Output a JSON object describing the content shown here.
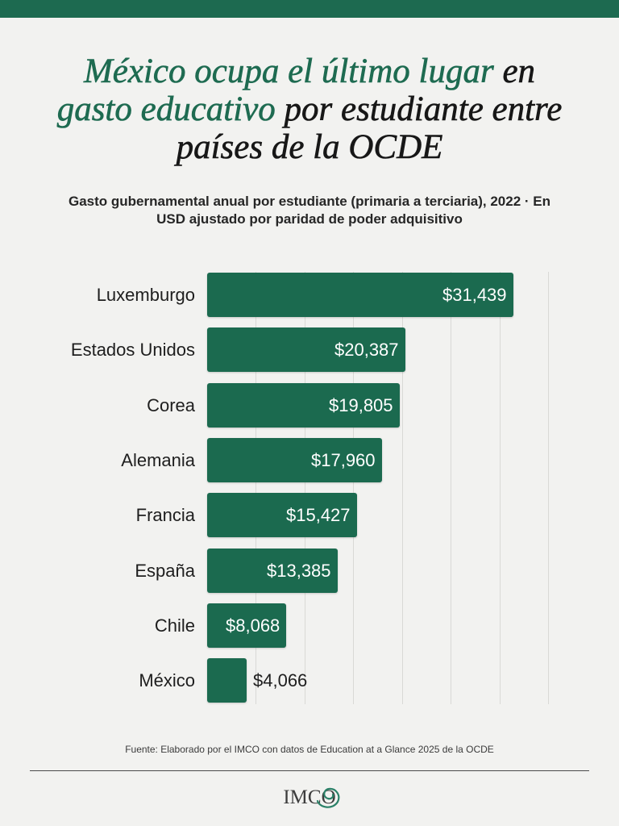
{
  "colors": {
    "brand_green": "#1e6b51",
    "bar": "#1b6a4f",
    "title_dark": "#171717",
    "background": "#f2f2f0",
    "gridline": "#d9d9d6",
    "value_label_inside": "#ffffff",
    "value_label_outside": "#1e1e1e"
  },
  "chart_data": {
    "type": "bar",
    "orientation": "horizontal",
    "title_lines": [
      [
        {
          "text": "México ocupa el último lugar",
          "color": "#1e6b51"
        },
        {
          "text": " en",
          "color": "#171717"
        }
      ],
      [
        {
          "text": "gasto educativo",
          "color": "#1e6b51"
        },
        {
          "text": " por estudiante entre",
          "color": "#171717"
        }
      ],
      [
        {
          "text": "países de la OCDE",
          "color": "#171717"
        }
      ]
    ],
    "subtitle": "Gasto gubernamental anual por estudiante (primaria a terciaria), 2022 · En USD ajustado por paridad de poder adquisitivo",
    "categories": [
      "Luxemburgo",
      "Estados Unidos",
      "Corea",
      "Alemania",
      "Francia",
      "España",
      "Chile",
      "México"
    ],
    "values": [
      31439,
      20387,
      19805,
      17960,
      15427,
      13385,
      8068,
      4066
    ],
    "value_labels": [
      "$31,439",
      "$20,387",
      "$19,805",
      "$17,960",
      "$15,427",
      "$13,385",
      "$8,068",
      "$4,066"
    ],
    "xlim": [
      0,
      35000
    ],
    "grid": true,
    "grid_step": 5000
  },
  "source": "Fuente: Elaborado por el IMCO con datos de Education at a Glance 2025 de la OCDE",
  "logo": {
    "text": "IMCO",
    "accent_color": "#2b8168"
  }
}
